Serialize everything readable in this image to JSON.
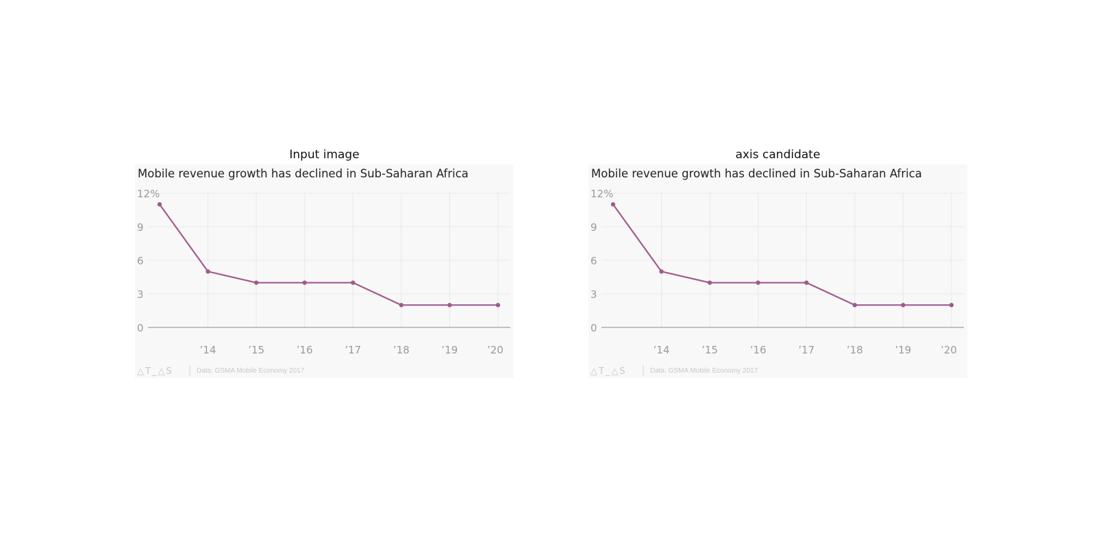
{
  "colors": {
    "series": "#a05a8c",
    "background": "#f8f8f8",
    "grid": "#e8e8e8",
    "baseline": "#8a8a8a"
  },
  "panels": [
    {
      "heading": "Input image"
    },
    {
      "heading": "axis candidate"
    }
  ],
  "chart_data": [
    {
      "type": "line",
      "title": "Mobile revenue growth has declined in Sub-Saharan Africa",
      "x": [
        2013,
        2014,
        2015,
        2016,
        2017,
        2018,
        2019,
        2020
      ],
      "x_tick_labels": [
        "’14",
        "’15",
        "’16",
        "’17",
        "’18",
        "’19",
        "’20"
      ],
      "y_tick_labels": [
        "12%",
        "9",
        "6",
        "3",
        "0"
      ],
      "series": [
        {
          "name": "Mobile revenue growth",
          "values": [
            11,
            5,
            4,
            4,
            4,
            2,
            2,
            2
          ]
        }
      ],
      "ylim": [
        0,
        12
      ],
      "xlabel": "",
      "ylabel": "",
      "footer": {
        "logo": "△T_△S",
        "source": "Data: GSMA Mobile Economy 2017"
      }
    },
    {
      "type": "line",
      "title": "Mobile revenue growth has declined in Sub-Saharan Africa",
      "x": [
        2013,
        2014,
        2015,
        2016,
        2017,
        2018,
        2019,
        2020
      ],
      "x_tick_labels": [
        "’14",
        "’15",
        "’16",
        "’17",
        "’18",
        "’19",
        "’20"
      ],
      "y_tick_labels": [
        "12%",
        "9",
        "6",
        "3",
        "0"
      ],
      "series": [
        {
          "name": "Mobile revenue growth",
          "values": [
            11,
            5,
            4,
            4,
            4,
            2,
            2,
            2
          ]
        }
      ],
      "ylim": [
        0,
        12
      ],
      "xlabel": "",
      "ylabel": "",
      "footer": {
        "logo": "△T_△S",
        "source": "Data: GSMA Mobile Economy 2017"
      }
    }
  ]
}
